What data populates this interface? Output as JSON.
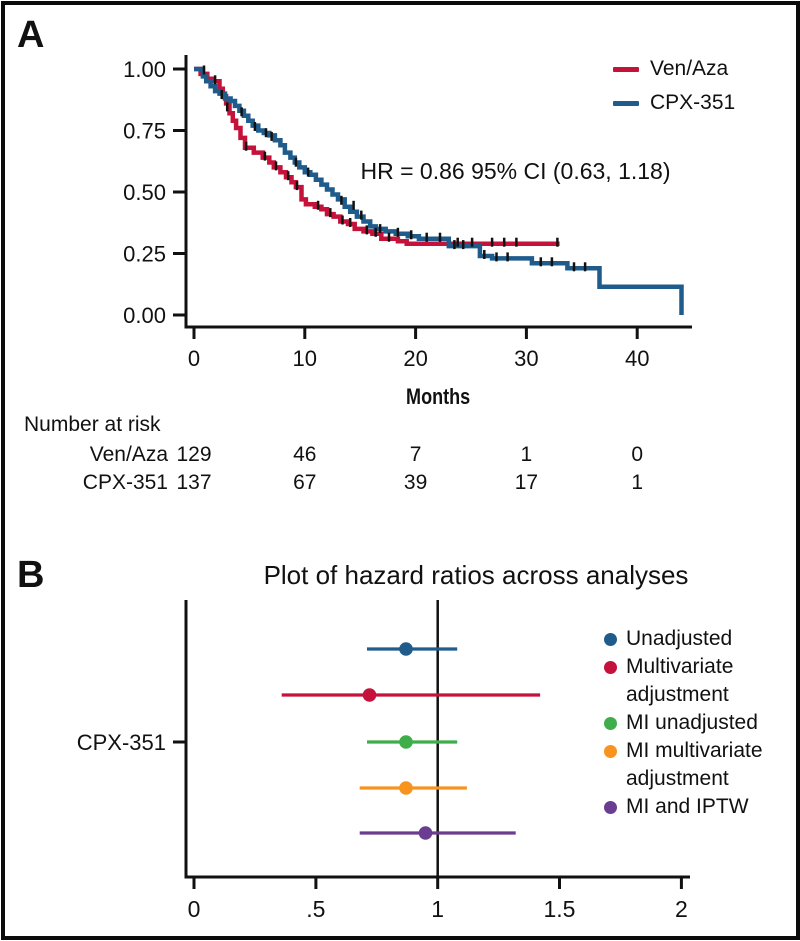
{
  "panel_a": {
    "label": "A",
    "risk_table": {
      "title": "Number at risk",
      "rows": [
        {
          "label": "Ven/Aza",
          "values": [
            "129",
            "46",
            "7",
            "1",
            "0"
          ]
        },
        {
          "label": "CPX-351",
          "values": [
            "137",
            "67",
            "39",
            "17",
            "1"
          ]
        }
      ]
    }
  },
  "panel_b": {
    "label": "B"
  },
  "chart_data": [
    {
      "type": "line",
      "subtype": "kaplan-meier-step",
      "title": "",
      "xlabel": "Months",
      "ylabel": "",
      "annotation": "HR = 0.86 95% CI (0.63, 1.18)",
      "xlim": [
        0,
        45
      ],
      "ylim": [
        0,
        1.0
      ],
      "grid": false,
      "legend_position": "top-right",
      "xticks": [
        {
          "v": 0,
          "label": "0"
        },
        {
          "v": 10,
          "label": "10"
        },
        {
          "v": 20,
          "label": "20"
        },
        {
          "v": 30,
          "label": "30"
        },
        {
          "v": 40,
          "label": "40"
        }
      ],
      "yticks": [
        {
          "v": 0,
          "label": "0.00"
        },
        {
          "v": 0.25,
          "label": "0.25"
        },
        {
          "v": 0.5,
          "label": "0.50"
        },
        {
          "v": 0.75,
          "label": "0.75"
        },
        {
          "v": 1,
          "label": "1.00"
        }
      ],
      "series": [
        {
          "name": "Ven/Aza",
          "color": "#c4123a",
          "points": [
            [
              0,
              1.0
            ],
            [
              0.6,
              0.98
            ],
            [
              1.2,
              0.96
            ],
            [
              1.6,
              0.95
            ],
            [
              2.3,
              0.92
            ],
            [
              2.6,
              0.89
            ],
            [
              2.9,
              0.86
            ],
            [
              3.2,
              0.82
            ],
            [
              3.5,
              0.79
            ],
            [
              3.8,
              0.76
            ],
            [
              4.2,
              0.72
            ],
            [
              4.6,
              0.68
            ],
            [
              5.4,
              0.66
            ],
            [
              6.2,
              0.64
            ],
            [
              6.8,
              0.62
            ],
            [
              7.2,
              0.6
            ],
            [
              7.8,
              0.58
            ],
            [
              8.3,
              0.56
            ],
            [
              8.8,
              0.54
            ],
            [
              9.2,
              0.52
            ],
            [
              9.7,
              0.47
            ],
            [
              10.1,
              0.45
            ],
            [
              10.9,
              0.44
            ],
            [
              11.5,
              0.43
            ],
            [
              12.0,
              0.41
            ],
            [
              12.6,
              0.4
            ],
            [
              13.2,
              0.38
            ],
            [
              13.9,
              0.37
            ],
            [
              14.5,
              0.35
            ],
            [
              15.3,
              0.34
            ],
            [
              16.1,
              0.33
            ],
            [
              16.9,
              0.31
            ],
            [
              18.4,
              0.3
            ],
            [
              19.2,
              0.29
            ],
            [
              33.0,
              0.29
            ]
          ],
          "censors": [
            [
              1.9,
              0.95
            ],
            [
              3.0,
              0.84
            ],
            [
              4.7,
              0.68
            ],
            [
              6.4,
              0.64
            ],
            [
              7.4,
              0.6
            ],
            [
              8.5,
              0.56
            ],
            [
              9.3,
              0.52
            ],
            [
              11.2,
              0.44
            ],
            [
              12.3,
              0.41
            ],
            [
              13.4,
              0.38
            ],
            [
              14.1,
              0.37
            ],
            [
              15.6,
              0.34
            ],
            [
              16.4,
              0.33
            ],
            [
              17.6,
              0.31
            ],
            [
              23.8,
              0.29
            ],
            [
              25.1,
              0.29
            ],
            [
              26.9,
              0.29
            ],
            [
              28.0,
              0.29
            ],
            [
              29.1,
              0.29
            ],
            [
              32.8,
              0.29
            ]
          ]
        },
        {
          "name": "CPX-351",
          "color": "#1f5c8c",
          "points": [
            [
              0,
              1.0
            ],
            [
              0.8,
              0.97
            ],
            [
              1.1,
              0.95
            ],
            [
              1.5,
              0.93
            ],
            [
              1.9,
              0.91
            ],
            [
              2.3,
              0.9
            ],
            [
              2.8,
              0.88
            ],
            [
              3.3,
              0.87
            ],
            [
              3.7,
              0.85
            ],
            [
              4.1,
              0.83
            ],
            [
              4.5,
              0.81
            ],
            [
              4.9,
              0.79
            ],
            [
              5.3,
              0.77
            ],
            [
              5.8,
              0.75
            ],
            [
              6.3,
              0.74
            ],
            [
              6.8,
              0.73
            ],
            [
              7.3,
              0.71
            ],
            [
              7.8,
              0.69
            ],
            [
              8.2,
              0.66
            ],
            [
              8.7,
              0.64
            ],
            [
              9.1,
              0.62
            ],
            [
              9.5,
              0.6
            ],
            [
              10.0,
              0.58
            ],
            [
              10.5,
              0.57
            ],
            [
              11.0,
              0.55
            ],
            [
              11.5,
              0.53
            ],
            [
              12.0,
              0.51
            ],
            [
              12.5,
              0.49
            ],
            [
              13.0,
              0.47
            ],
            [
              13.6,
              0.44
            ],
            [
              14.1,
              0.42
            ],
            [
              14.7,
              0.4
            ],
            [
              15.3,
              0.38
            ],
            [
              15.9,
              0.36
            ],
            [
              16.4,
              0.35
            ],
            [
              17.3,
              0.34
            ],
            [
              18.2,
              0.33
            ],
            [
              19.3,
              0.32
            ],
            [
              20.3,
              0.31
            ],
            [
              23.0,
              0.28
            ],
            [
              25.8,
              0.24
            ],
            [
              26.9,
              0.23
            ],
            [
              30.5,
              0.21
            ],
            [
              33.7,
              0.19
            ],
            [
              36.6,
              0.115
            ],
            [
              44.0,
              0.0
            ]
          ],
          "censors": [
            [
              0.9,
              0.99
            ],
            [
              2.5,
              0.89
            ],
            [
              4.3,
              0.82
            ],
            [
              5.5,
              0.76
            ],
            [
              6.5,
              0.735
            ],
            [
              7.0,
              0.72
            ],
            [
              9.2,
              0.615
            ],
            [
              10.3,
              0.575
            ],
            [
              13.3,
              0.46
            ],
            [
              14.4,
              0.44
            ],
            [
              15.1,
              0.4
            ],
            [
              16.8,
              0.345
            ],
            [
              18.4,
              0.33
            ],
            [
              19.6,
              0.32
            ],
            [
              21.0,
              0.31
            ],
            [
              22.2,
              0.31
            ],
            [
              23.5,
              0.28
            ],
            [
              24.3,
              0.28
            ],
            [
              26.2,
              0.24
            ],
            [
              27.3,
              0.23
            ],
            [
              28.3,
              0.23
            ],
            [
              31.3,
              0.21
            ],
            [
              32.3,
              0.21
            ],
            [
              34.3,
              0.19
            ],
            [
              35.3,
              0.19
            ]
          ]
        }
      ]
    },
    {
      "type": "scatter",
      "subtype": "forest-plot",
      "title": "Plot of hazard ratios across analyses",
      "category": "CPX-351",
      "refline_x": 1,
      "xlim": [
        0,
        2.05
      ],
      "xticks": [
        {
          "v": 0,
          "label": "0"
        },
        {
          "v": 0.5,
          "label": ".5"
        },
        {
          "v": 1,
          "label": "1"
        },
        {
          "v": 1.5,
          "label": "1.5"
        },
        {
          "v": 2,
          "label": "2"
        }
      ],
      "legend_position": "right",
      "series": [
        {
          "name": "Unadjusted",
          "color": "#1f5c8c",
          "hr": 0.87,
          "ci": [
            0.71,
            1.08
          ]
        },
        {
          "name": "Multivariate adjustment",
          "color": "#c4123a",
          "hr": 0.72,
          "ci": [
            0.36,
            1.42
          ]
        },
        {
          "name": "MI unadjusted",
          "color": "#3fae4a",
          "hr": 0.87,
          "ci": [
            0.71,
            1.08
          ]
        },
        {
          "name": "MI multivariate adjustment",
          "color": "#f8941e",
          "hr": 0.87,
          "ci": [
            0.68,
            1.12
          ]
        },
        {
          "name": "MI and IPTW",
          "color": "#6a3d90",
          "hr": 0.95,
          "ci": [
            0.68,
            1.32
          ]
        }
      ]
    }
  ]
}
